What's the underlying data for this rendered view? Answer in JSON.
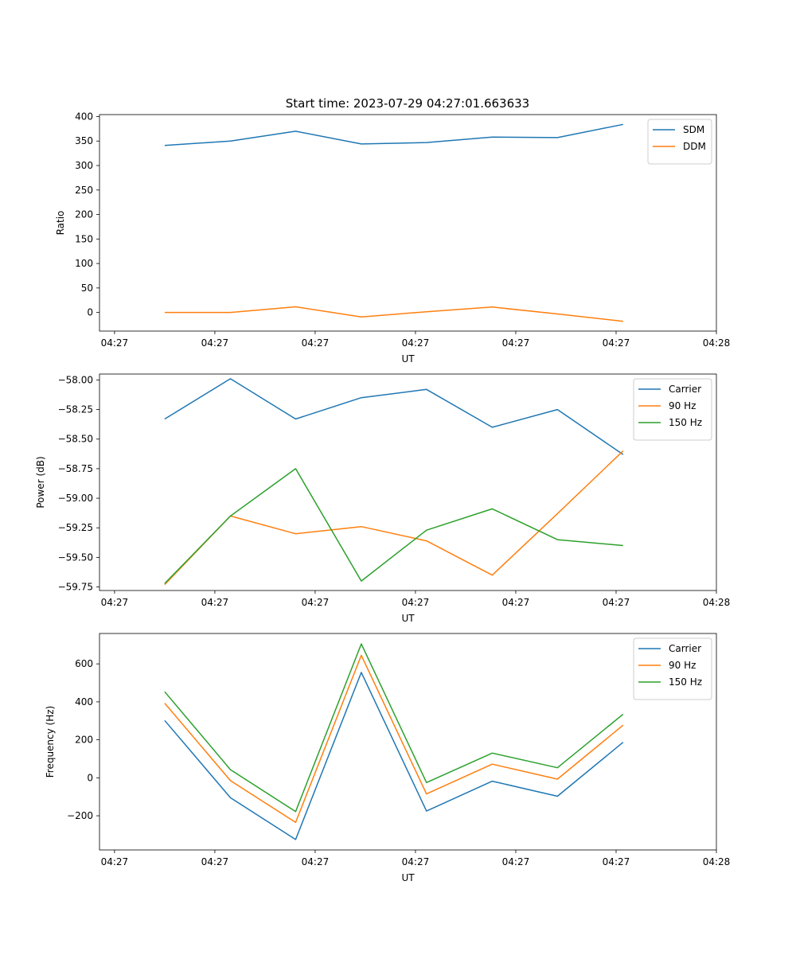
{
  "figure": {
    "title": "Start time: 2023-07-29 04:27:01.663633"
  },
  "chart_data": [
    {
      "type": "line",
      "title": "Start time: 2023-07-29 04:27:01.663633",
      "xlabel": "UT",
      "ylabel": "Ratio",
      "x_ticks": [
        "04:27",
        "04:27",
        "04:27",
        "04:27",
        "04:27",
        "04:27",
        "04:28"
      ],
      "x_tick_values": [
        0,
        2,
        4,
        6,
        8,
        10,
        12
      ],
      "x": [
        1,
        2.31,
        3.61,
        4.92,
        6.22,
        7.53,
        8.83,
        10.14
      ],
      "xlim": [
        -0.3,
        12
      ],
      "y_ticks": [
        0,
        50,
        100,
        150,
        200,
        250,
        300,
        350,
        400
      ],
      "ylim": [
        -38,
        404
      ],
      "legend": "top-right",
      "series": [
        {
          "name": "SDM",
          "color": "#1f77b4",
          "values": [
            341,
            350,
            370,
            344,
            347,
            358,
            357,
            384
          ]
        },
        {
          "name": "DDM",
          "color": "#ff7f0e",
          "values": [
            0,
            0,
            11.5,
            -9,
            1.5,
            11,
            -3,
            -18
          ]
        }
      ]
    },
    {
      "type": "line",
      "title": "",
      "xlabel": "UT",
      "ylabel": "Power (dB)",
      "x_ticks": [
        "04:27",
        "04:27",
        "04:27",
        "04:27",
        "04:27",
        "04:27",
        "04:28"
      ],
      "x_tick_values": [
        0,
        2,
        4,
        6,
        8,
        10,
        12
      ],
      "x": [
        1,
        2.31,
        3.61,
        4.92,
        6.22,
        7.53,
        8.83,
        10.14
      ],
      "xlim": [
        -0.3,
        12
      ],
      "y_ticks": [
        -58.0,
        -58.25,
        -58.5,
        -58.75,
        -59.0,
        -59.25,
        -59.5,
        -59.75
      ],
      "y_tick_labels": [
        "−58.00",
        "−58.25",
        "−58.50",
        "−58.75",
        "−59.00",
        "−59.25",
        "−59.50",
        "−59.75"
      ],
      "ylim": [
        -59.78,
        -57.95
      ],
      "legend": "top-right",
      "series": [
        {
          "name": "Carrier",
          "color": "#1f77b4",
          "values": [
            -58.33,
            -57.99,
            -58.33,
            -58.15,
            -58.08,
            -58.4,
            -58.25,
            -58.63
          ]
        },
        {
          "name": "90 Hz",
          "color": "#ff7f0e",
          "values": [
            -59.73,
            -59.15,
            -59.3,
            -59.24,
            -59.36,
            -59.65,
            -59.13,
            -58.6
          ]
        },
        {
          "name": "150 Hz",
          "color": "#2ca02c",
          "values": [
            -59.72,
            -59.15,
            -58.75,
            -59.7,
            -59.27,
            -59.09,
            -59.35,
            -59.4
          ]
        }
      ]
    },
    {
      "type": "line",
      "title": "",
      "xlabel": "UT",
      "ylabel": "Frequency (Hz)",
      "x_ticks": [
        "04:27",
        "04:27",
        "04:27",
        "04:27",
        "04:27",
        "04:27",
        "04:28"
      ],
      "x_tick_values": [
        0,
        2,
        4,
        6,
        8,
        10,
        12
      ],
      "x": [
        1,
        2.31,
        3.61,
        4.92,
        6.22,
        7.53,
        8.83,
        10.14
      ],
      "xlim": [
        -0.3,
        12
      ],
      "y_ticks": [
        -200,
        0,
        200,
        400,
        600
      ],
      "y_tick_labels": [
        "−200",
        "0",
        "200",
        "400",
        "600"
      ],
      "ylim": [
        -380,
        760
      ],
      "legend": "top-right",
      "series": [
        {
          "name": "Carrier",
          "color": "#1f77b4",
          "values": [
            302,
            -105,
            -325,
            555,
            -175,
            -18,
            -97,
            187
          ]
        },
        {
          "name": "90 Hz",
          "color": "#ff7f0e",
          "values": [
            393,
            -15,
            -235,
            645,
            -85,
            72,
            -7,
            277
          ]
        },
        {
          "name": "150 Hz",
          "color": "#2ca02c",
          "values": [
            453,
            43,
            -178,
            705,
            -25,
            130,
            53,
            335
          ]
        }
      ]
    }
  ]
}
